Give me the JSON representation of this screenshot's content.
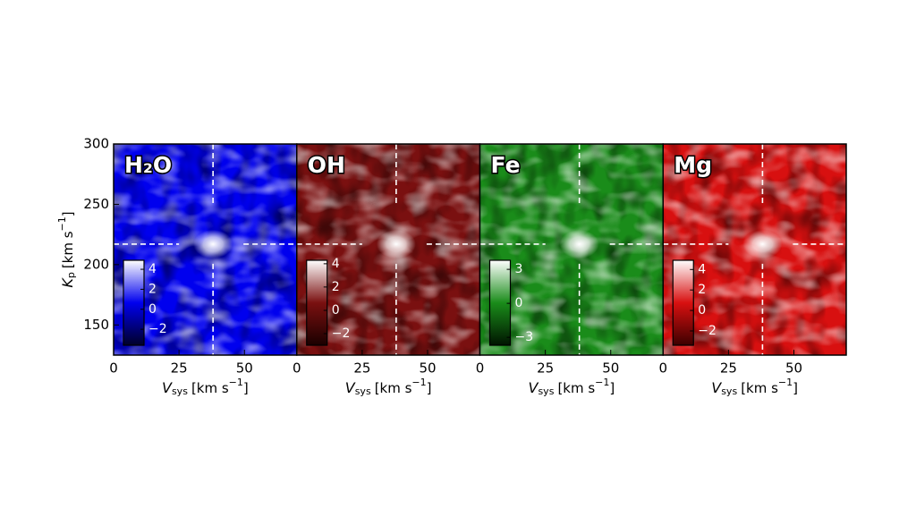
{
  "chart_data": [
    {
      "type": "heatmap",
      "title": "H₂O",
      "colormap": [
        "#000028",
        "#0000ee",
        "#ffffff"
      ],
      "xlim": [
        0,
        70
      ],
      "xticks": [
        0,
        25,
        50
      ],
      "ylim": [
        125,
        300
      ],
      "yticks": [
        150,
        200,
        250,
        300
      ],
      "xlabel": {
        "symbol": "V",
        "sub": "sys",
        "unit": "[km s",
        "sup": "−1",
        "close": "]"
      },
      "ylabel": {
        "symbol": "K",
        "sub": "p",
        "unit": "[km s",
        "sup": "−1",
        "close": "]"
      },
      "marker": {
        "x": 38,
        "y": 217
      },
      "clim": [
        -3.6,
        4.9
      ],
      "cticks": [
        4,
        2,
        0,
        {
          "value": -2,
          "label": "−2"
        }
      ]
    },
    {
      "type": "heatmap",
      "title": "OH",
      "colormap": [
        "#1a0000",
        "#7a1010",
        "#ffffff"
      ],
      "xlim": [
        0,
        70
      ],
      "xticks": [
        0,
        25,
        50
      ],
      "ylim": [
        125,
        300
      ],
      "xlabel": {
        "symbol": "V",
        "sub": "sys",
        "unit": "[km s",
        "sup": "−1",
        "close": "]"
      },
      "marker": {
        "x": 38,
        "y": 217
      },
      "clim": [
        -3.0,
        4.3
      ],
      "cticks": [
        4,
        2,
        0,
        {
          "value": -2,
          "label": "−2"
        }
      ]
    },
    {
      "type": "heatmap",
      "title": "Fe",
      "colormap": [
        "#001400",
        "#1a8c1a",
        "#ffffff"
      ],
      "xlim": [
        0,
        70
      ],
      "xticks": [
        0,
        25,
        50
      ],
      "ylim": [
        125,
        300
      ],
      "xlabel": {
        "symbol": "V",
        "sub": "sys",
        "unit": "[km s",
        "sup": "−1",
        "close": "]"
      },
      "marker": {
        "x": 38,
        "y": 217
      },
      "clim": [
        -3.7,
        3.8
      ],
      "cticks": [
        3,
        0,
        {
          "value": -3,
          "label": "−3"
        }
      ]
    },
    {
      "type": "heatmap",
      "title": "Mg",
      "colormap": [
        "#3c0000",
        "#d81010",
        "#ffffff"
      ],
      "xlim": [
        0,
        70
      ],
      "xticks": [
        0,
        25,
        50
      ],
      "ylim": [
        125,
        300
      ],
      "xlabel": {
        "symbol": "V",
        "sub": "sys",
        "unit": "[km s",
        "sup": "−1",
        "close": "]"
      },
      "marker": {
        "x": 38,
        "y": 217
      },
      "clim": [
        -3.4,
        4.9
      ],
      "cticks": [
        4,
        2,
        0,
        {
          "value": -2,
          "label": "−2"
        }
      ]
    }
  ]
}
